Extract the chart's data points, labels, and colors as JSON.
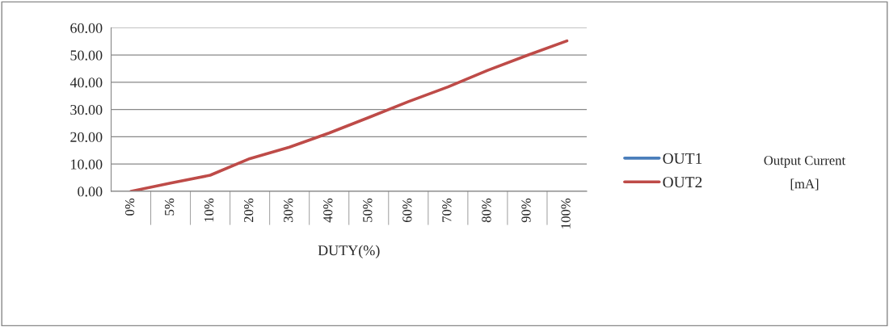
{
  "chart_data": {
    "type": "line",
    "xlabel": "DUTY(%)",
    "annotations": [
      "Output Current\n[mA]"
    ],
    "categories": [
      "0%",
      "5%",
      "10%",
      "20%",
      "30%",
      "40%",
      "50%",
      "60%",
      "70%",
      "80%",
      "90%",
      "100%"
    ],
    "series": [
      {
        "name": "OUT1",
        "color": "#4a7ebb",
        "values": [
          null,
          null,
          null,
          null,
          null,
          null,
          null,
          null,
          null,
          null,
          null,
          null
        ]
      },
      {
        "name": "OUT2",
        "color": "#be4b48",
        "values": [
          0,
          3.0,
          5.9,
          12.0,
          16.2,
          21.4,
          27.1,
          32.9,
          38.3,
          44.4,
          49.9,
          55.2
        ]
      }
    ],
    "ylim": [
      0,
      60
    ],
    "yticks": [
      {
        "value": 0,
        "label": "0.00"
      },
      {
        "value": 10,
        "label": "10.00"
      },
      {
        "value": 20,
        "label": "20.00"
      },
      {
        "value": 30,
        "label": "30.00"
      },
      {
        "value": 40,
        "label": "40.00"
      },
      {
        "value": 50,
        "label": "50.00"
      },
      {
        "value": 60,
        "label": "60.00"
      }
    ],
    "grid": "y",
    "legend": "right",
    "marker": "none",
    "line_style": "solid"
  }
}
